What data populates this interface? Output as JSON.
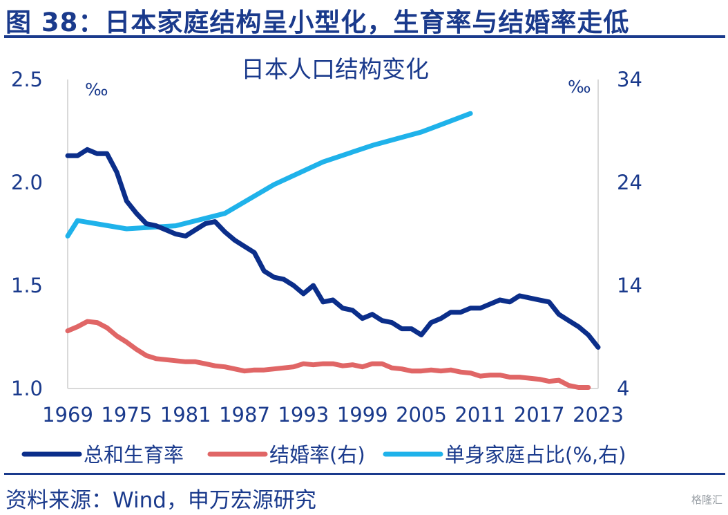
{
  "figure": {
    "title": "图 38：日本家庭结构呈小型化，生育率与结婚率走低",
    "source": "资料来源：Wind，申万宏源研究",
    "watermark": "格隆汇"
  },
  "colors": {
    "text": "#1a3a8c",
    "fertility": "#0b2e8a",
    "marriage": "#e06666",
    "single": "#1fb2ea"
  },
  "chart_data": {
    "type": "line",
    "title": "日本人口结构变化",
    "left_unit": "‰",
    "right_unit": "‰",
    "x_ticks": [
      "1969",
      "1975",
      "1981",
      "1987",
      "1993",
      "1999",
      "2005",
      "2011",
      "2017",
      "2023"
    ],
    "left_ticks": [
      "1.0",
      "1.5",
      "2.0",
      "2.5"
    ],
    "right_ticks": [
      "4",
      "14",
      "24",
      "34"
    ],
    "x_range": [
      1969,
      2023
    ],
    "left_ylim": [
      1.0,
      2.5
    ],
    "right_ylim": [
      4,
      34
    ],
    "grid": false,
    "legend_position": "bottom",
    "series": [
      {
        "name": "总和生育率",
        "axis": "left",
        "color": "#0b2e8a",
        "x": [
          1969,
          1970,
          1971,
          1972,
          1973,
          1974,
          1975,
          1976,
          1977,
          1978,
          1979,
          1980,
          1981,
          1982,
          1983,
          1984,
          1985,
          1986,
          1987,
          1988,
          1989,
          1990,
          1991,
          1992,
          1993,
          1994,
          1995,
          1996,
          1997,
          1998,
          1999,
          2000,
          2001,
          2002,
          2003,
          2004,
          2005,
          2006,
          2007,
          2008,
          2009,
          2010,
          2011,
          2012,
          2013,
          2014,
          2015,
          2016,
          2017,
          2018,
          2019,
          2020,
          2021,
          2022,
          2023
        ],
        "values": [
          2.13,
          2.13,
          2.16,
          2.14,
          2.14,
          2.05,
          1.91,
          1.85,
          1.8,
          1.79,
          1.77,
          1.75,
          1.74,
          1.77,
          1.8,
          1.81,
          1.76,
          1.72,
          1.69,
          1.66,
          1.57,
          1.54,
          1.53,
          1.5,
          1.46,
          1.5,
          1.42,
          1.43,
          1.39,
          1.38,
          1.34,
          1.36,
          1.33,
          1.32,
          1.29,
          1.29,
          1.26,
          1.32,
          1.34,
          1.37,
          1.37,
          1.39,
          1.39,
          1.41,
          1.43,
          1.42,
          1.45,
          1.44,
          1.43,
          1.42,
          1.36,
          1.33,
          1.3,
          1.26,
          1.2
        ]
      },
      {
        "name": "结婚率(右)",
        "axis": "right",
        "color": "#e06666",
        "x": [
          1969,
          1970,
          1971,
          1972,
          1973,
          1974,
          1975,
          1976,
          1977,
          1978,
          1979,
          1980,
          1981,
          1982,
          1983,
          1984,
          1985,
          1986,
          1987,
          1988,
          1989,
          1990,
          1991,
          1992,
          1993,
          1994,
          1995,
          1996,
          1997,
          1998,
          1999,
          2000,
          2001,
          2002,
          2003,
          2004,
          2005,
          2006,
          2007,
          2008,
          2009,
          2010,
          2011,
          2012,
          2013,
          2014,
          2015,
          2016,
          2017,
          2018,
          2019,
          2020,
          2021,
          2022
        ],
        "values": [
          9.6,
          10.0,
          10.5,
          10.4,
          9.9,
          9.1,
          8.5,
          7.8,
          7.2,
          6.9,
          6.8,
          6.7,
          6.6,
          6.6,
          6.4,
          6.2,
          6.1,
          5.9,
          5.7,
          5.8,
          5.8,
          5.9,
          6.0,
          6.1,
          6.4,
          6.3,
          6.4,
          6.4,
          6.2,
          6.3,
          6.1,
          6.4,
          6.4,
          6.0,
          5.9,
          5.7,
          5.7,
          5.8,
          5.7,
          5.8,
          5.6,
          5.5,
          5.2,
          5.3,
          5.3,
          5.1,
          5.1,
          5.0,
          4.9,
          4.7,
          4.8,
          4.3,
          4.1,
          4.1
        ]
      },
      {
        "name": "单身家庭占比(%,右)",
        "axis": "right",
        "color": "#1fb2ea",
        "x": [
          1969,
          1970,
          1975,
          1980,
          1985,
          1990,
          1995,
          2000,
          2005,
          2010
        ],
        "values": [
          18.8,
          20.3,
          19.5,
          19.8,
          21.0,
          23.8,
          26.0,
          27.6,
          28.9,
          30.7
        ]
      }
    ]
  }
}
